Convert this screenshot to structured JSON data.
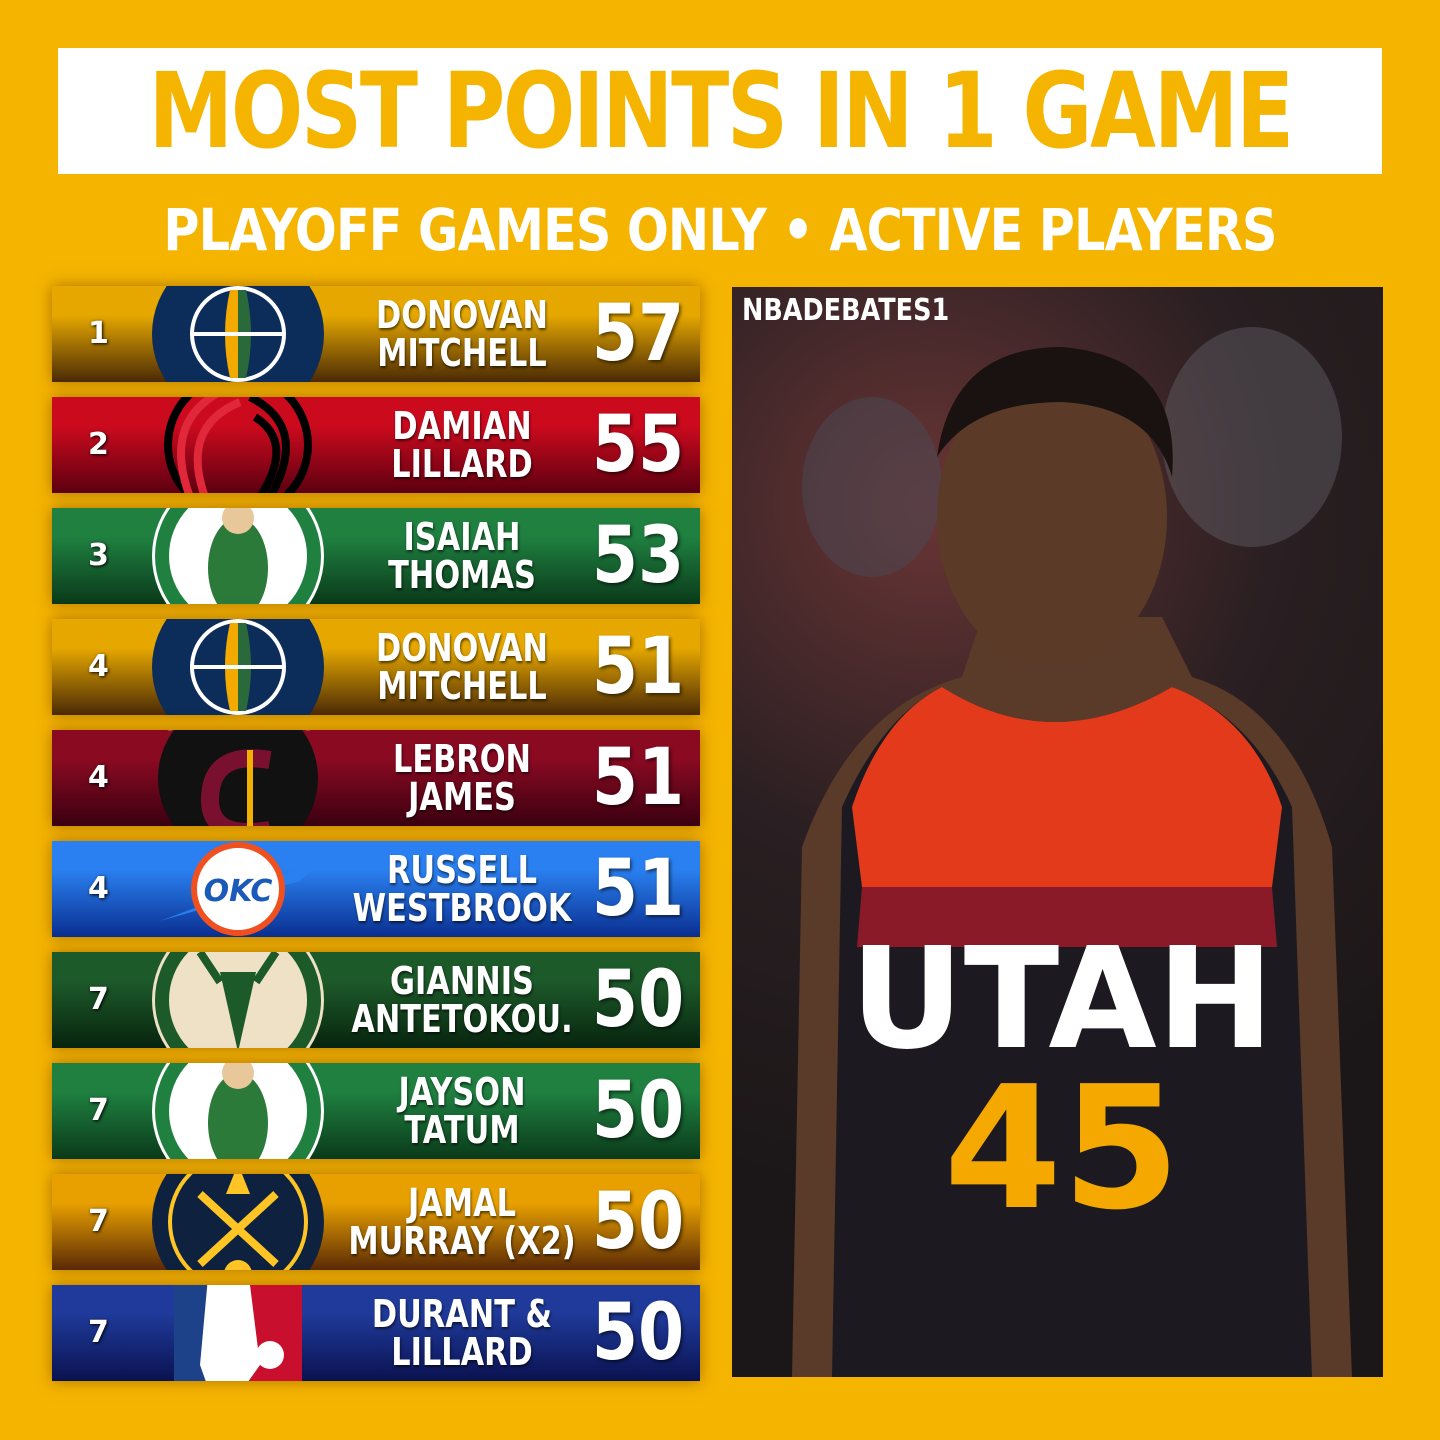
{
  "header": {
    "title": "MOST POINTS IN 1 GAME",
    "subtitle": "PLAYOFF GAMES ONLY • ACTIVE PLAYERS"
  },
  "rows": [
    {
      "rank": "1",
      "first": "DONOVAN",
      "last": "MITCHELL",
      "points": "57",
      "team": "jazz",
      "colors": [
        "#e6a800",
        "#4a2a05"
      ]
    },
    {
      "rank": "2",
      "first": "DAMIAN",
      "last": "LILLARD",
      "points": "55",
      "team": "blazers",
      "colors": [
        "#cc0a1e",
        "#5c0010"
      ]
    },
    {
      "rank": "3",
      "first": "ISAIAH",
      "last": "THOMAS",
      "points": "53",
      "team": "celtics",
      "colors": [
        "#1f8040",
        "#0a3a1a"
      ]
    },
    {
      "rank": "4",
      "first": "DONOVAN",
      "last": "MITCHELL",
      "points": "51",
      "team": "jazz",
      "colors": [
        "#e6a800",
        "#4a2a05"
      ]
    },
    {
      "rank": "4",
      "first": "LEBRON",
      "last": "JAMES",
      "points": "51",
      "team": "cavaliers",
      "colors": [
        "#8a0a22",
        "#3a0010"
      ]
    },
    {
      "rank": "4",
      "first": "RUSSELL",
      "last": "WESTBROOK",
      "points": "51",
      "team": "thunder",
      "colors": [
        "#2a80f0",
        "#0a2f90"
      ]
    },
    {
      "rank": "7",
      "first": "GIANNIS",
      "last": "ANTETOKOU.",
      "points": "50",
      "team": "bucks",
      "colors": [
        "#1d5a2a",
        "#07240e"
      ]
    },
    {
      "rank": "7",
      "first": "JAYSON",
      "last": "TATUM",
      "points": "50",
      "team": "celtics",
      "colors": [
        "#1f8040",
        "#0a3a1a"
      ]
    },
    {
      "rank": "7",
      "first": "JAMAL",
      "last": "MURRAY (X2)",
      "points": "50",
      "team": "nuggets",
      "colors": [
        "#e8a000",
        "#5a2a05"
      ]
    },
    {
      "rank": "7",
      "first": "DURANT &",
      "last": "LILLARD",
      "points": "50",
      "team": "nba",
      "colors": [
        "#1f3a9a",
        "#0a1250"
      ]
    }
  ],
  "photo": {
    "watermark": "NBADEBATES1",
    "jersey_team": "UTAH",
    "jersey_number": "45"
  },
  "colors": {
    "background": "#f5b400",
    "title_text": "#f5b400"
  }
}
